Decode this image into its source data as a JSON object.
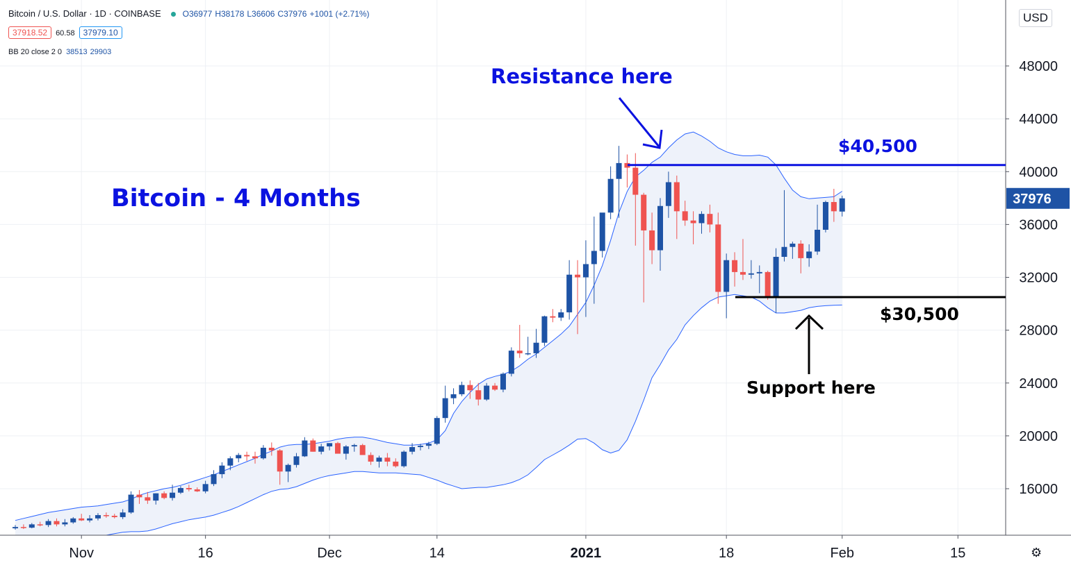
{
  "header": {
    "symbol": "Bitcoin / U.S. Dollar · 1D · COINBASE",
    "ohlc": {
      "o": "O36977",
      "h": "H38178",
      "l": "L36606",
      "c": "C37976",
      "change": "+1001 (+2.71%)"
    },
    "bid": "37918.52",
    "spread": "60.58",
    "ask": "37979.10",
    "indicator_label": "BB 20 close 2 0",
    "indicator_upper": "38513",
    "indicator_lower": "29903"
  },
  "currency_button": "USD",
  "settings_icon": "gear-icon",
  "colors": {
    "up": "#1e53a5",
    "down": "#ef5350",
    "band_fill": "#eef2fa",
    "band_line": "#2962ff",
    "annotation_blue": "#0b12e0",
    "price_tag": "#1e53a5"
  },
  "chart_data": {
    "type": "candlestick",
    "title": "Bitcoin - 4 Months",
    "y_ticks": [
      16000,
      20000,
      24000,
      28000,
      32000,
      36000,
      40000,
      44000,
      48000
    ],
    "y_range": [
      12800,
      51200
    ],
    "x_range": [
      "2020-10-24",
      "2021-02-18"
    ],
    "x_ticks": [
      {
        "label": "Nov",
        "date": "2020-11-01"
      },
      {
        "label": "16",
        "date": "2020-11-16"
      },
      {
        "label": "Dec",
        "date": "2020-12-01"
      },
      {
        "label": "14",
        "date": "2020-12-14"
      },
      {
        "label": "2021",
        "date": "2021-01-01",
        "bold": true
      },
      {
        "label": "18",
        "date": "2021-01-18"
      },
      {
        "label": "Feb",
        "date": "2021-02-01"
      },
      {
        "label": "15",
        "date": "2021-02-15"
      }
    ],
    "last_price": "37976",
    "series": [
      {
        "name": "BTCUSD",
        "start_date": "2020-10-24",
        "candles": [
          [
            13000,
            13250,
            12900,
            13100
          ],
          [
            13100,
            13300,
            12950,
            13050
          ],
          [
            13050,
            13400,
            13000,
            13300
          ],
          [
            13300,
            13500,
            13150,
            13250
          ],
          [
            13250,
            13700,
            13100,
            13550
          ],
          [
            13550,
            13750,
            13150,
            13300
          ],
          [
            13300,
            13700,
            13150,
            13450
          ],
          [
            13450,
            13850,
            13350,
            13750
          ],
          [
            13750,
            14100,
            13550,
            13600
          ],
          [
            13600,
            14000,
            13450,
            13750
          ],
          [
            13750,
            14150,
            13600,
            14000
          ],
          [
            14000,
            14200,
            13800,
            13950
          ],
          [
            13950,
            14100,
            13750,
            13850
          ],
          [
            13850,
            14450,
            13700,
            14200
          ],
          [
            14200,
            15800,
            14100,
            15550
          ],
          [
            15550,
            15900,
            14850,
            15350
          ],
          [
            15350,
            15750,
            14850,
            15100
          ],
          [
            15100,
            15650,
            14800,
            15650
          ],
          [
            15650,
            15800,
            15200,
            15300
          ],
          [
            15300,
            16300,
            15100,
            15700
          ],
          [
            15700,
            16200,
            15600,
            16050
          ],
          [
            16050,
            16300,
            15800,
            15950
          ],
          [
            15950,
            16100,
            15750,
            15800
          ],
          [
            15800,
            16600,
            15650,
            16350
          ],
          [
            16350,
            17400,
            16200,
            17100
          ],
          [
            17100,
            18000,
            16800,
            17750
          ],
          [
            17750,
            18450,
            17400,
            18300
          ],
          [
            18300,
            18700,
            18000,
            18550
          ],
          [
            18550,
            18800,
            18100,
            18450
          ],
          [
            18450,
            18800,
            17900,
            18300
          ],
          [
            18300,
            19300,
            18200,
            19100
          ],
          [
            19100,
            19500,
            18500,
            18900
          ],
          [
            18900,
            19000,
            16300,
            17300
          ],
          [
            17300,
            17900,
            16500,
            17800
          ],
          [
            17800,
            18700,
            17600,
            18450
          ],
          [
            18450,
            19900,
            18400,
            19650
          ],
          [
            19650,
            19800,
            18800,
            18800
          ],
          [
            18800,
            19400,
            18600,
            19200
          ],
          [
            19200,
            19450,
            18900,
            19450
          ],
          [
            19450,
            19550,
            18700,
            18650
          ],
          [
            18650,
            19300,
            18200,
            19200
          ],
          [
            19200,
            19400,
            18800,
            19300
          ],
          [
            19300,
            19400,
            18600,
            18550
          ],
          [
            18550,
            18750,
            17800,
            18050
          ],
          [
            18050,
            18500,
            17600,
            18350
          ],
          [
            18350,
            18700,
            17700,
            18050
          ],
          [
            18050,
            18300,
            17600,
            17700
          ],
          [
            17700,
            18900,
            17600,
            18800
          ],
          [
            18800,
            19450,
            18600,
            19150
          ],
          [
            19150,
            19400,
            18900,
            19250
          ],
          [
            19250,
            19550,
            19000,
            19400
          ],
          [
            19400,
            21500,
            19300,
            21350
          ],
          [
            21350,
            23800,
            21000,
            22850
          ],
          [
            22850,
            23600,
            22400,
            23150
          ],
          [
            23150,
            24100,
            23000,
            23850
          ],
          [
            23850,
            24200,
            22800,
            23450
          ],
          [
            23450,
            24000,
            22300,
            22750
          ],
          [
            22750,
            24000,
            22650,
            23800
          ],
          [
            23800,
            24000,
            23400,
            23500
          ],
          [
            23500,
            24800,
            23300,
            24700
          ],
          [
            24700,
            26700,
            24500,
            26450
          ],
          [
            26450,
            28400,
            25900,
            26250
          ],
          [
            26250,
            27500,
            26100,
            26250
          ],
          [
            26250,
            28100,
            25900,
            27050
          ],
          [
            27050,
            29100,
            26800,
            29050
          ],
          [
            29050,
            29600,
            28600,
            28950
          ],
          [
            28950,
            29600,
            28700,
            29350
          ],
          [
            29350,
            33300,
            28800,
            32200
          ],
          [
            32200,
            33300,
            27700,
            32000
          ],
          [
            32000,
            34800,
            29000,
            33000
          ],
          [
            33000,
            36600,
            30000,
            34000
          ],
          [
            34000,
            36600,
            33500,
            36900
          ],
          [
            36900,
            40400,
            36400,
            39450
          ],
          [
            39450,
            41950,
            36500,
            40650
          ],
          [
            40650,
            41300,
            38800,
            40300
          ],
          [
            40300,
            41400,
            34400,
            38250
          ],
          [
            38250,
            38400,
            30100,
            35550
          ],
          [
            35550,
            36900,
            33000,
            34050
          ],
          [
            34050,
            38000,
            32500,
            37400
          ],
          [
            37400,
            40000,
            36500,
            39200
          ],
          [
            39200,
            39700,
            34900,
            37000
          ],
          [
            37000,
            37800,
            35900,
            36300
          ],
          [
            36300,
            37000,
            34500,
            36100
          ],
          [
            36100,
            37000,
            35300,
            36800
          ],
          [
            36800,
            37500,
            35400,
            36000
          ],
          [
            36000,
            36900,
            30000,
            30900
          ],
          [
            30900,
            33800,
            28900,
            33300
          ],
          [
            33300,
            33900,
            31300,
            32400
          ],
          [
            32400,
            34900,
            31800,
            32200
          ],
          [
            32200,
            33300,
            31900,
            32300
          ],
          [
            32300,
            32900,
            30800,
            32400
          ],
          [
            32400,
            32500,
            30300,
            30550
          ],
          [
            30550,
            34200,
            29300,
            33550
          ],
          [
            33550,
            38600,
            33200,
            34300
          ],
          [
            34300,
            34700,
            33400,
            34550
          ],
          [
            34550,
            34800,
            32300,
            33450
          ],
          [
            33450,
            34500,
            32800,
            33950
          ],
          [
            33950,
            37500,
            33700,
            35600
          ],
          [
            35600,
            37800,
            35400,
            37700
          ],
          [
            37700,
            38700,
            36200,
            37000
          ],
          [
            36977,
            38178,
            36606,
            37976
          ]
        ]
      }
    ],
    "bollinger": {
      "label": "BB 20 close 2 0",
      "upper": [
        13600,
        13750,
        13900,
        14050,
        14200,
        14300,
        14400,
        14500,
        14600,
        14650,
        14700,
        14800,
        14900,
        15000,
        15200,
        15500,
        15700,
        15850,
        16000,
        16100,
        16250,
        16450,
        16650,
        16850,
        17050,
        17300,
        17550,
        17800,
        18050,
        18300,
        18600,
        18850,
        19150,
        19300,
        19350,
        19350,
        19400,
        19500,
        19600,
        19750,
        19850,
        19900,
        19900,
        19800,
        19650,
        19500,
        19400,
        19300,
        19300,
        19350,
        19450,
        19700,
        20400,
        21700,
        22600,
        23300,
        23900,
        24300,
        24500,
        24650,
        24900,
        25300,
        25800,
        26200,
        26700,
        27200,
        27700,
        28300,
        29200,
        30100,
        31400,
        32900,
        34800,
        36900,
        38500,
        39600,
        40100,
        40700,
        41100,
        41800,
        42400,
        42850,
        43000,
        42700,
        42300,
        41800,
        41500,
        41300,
        41200,
        41200,
        41250,
        41100,
        40500,
        39500,
        38600,
        38100,
        37950,
        38000,
        38050,
        38100,
        38513
      ],
      "lower": [
        11000,
        11100,
        11200,
        11350,
        11500,
        11700,
        11850,
        11950,
        12050,
        12150,
        12300,
        12450,
        12600,
        12700,
        12750,
        12750,
        12800,
        12950,
        13150,
        13350,
        13500,
        13650,
        13750,
        13850,
        14000,
        14200,
        14400,
        14650,
        14950,
        15250,
        15550,
        15800,
        15950,
        16000,
        16150,
        16400,
        16650,
        16850,
        17000,
        17100,
        17200,
        17300,
        17300,
        17250,
        17200,
        17200,
        17200,
        17150,
        17100,
        17050,
        16850,
        16650,
        16400,
        16200,
        16000,
        16050,
        16100,
        16100,
        16200,
        16300,
        16450,
        16700,
        17050,
        17600,
        18200,
        18550,
        18900,
        19300,
        19750,
        19800,
        19450,
        18950,
        18700,
        18900,
        19700,
        21100,
        22700,
        24400,
        25400,
        26500,
        27300,
        28400,
        29100,
        29700,
        30200,
        30500,
        30600,
        30700,
        30600,
        30500,
        30200,
        29700,
        29300,
        29300,
        29400,
        29500,
        29700,
        29800,
        29850,
        29880,
        29903
      ]
    },
    "annotations": {
      "resistance_level": 40500,
      "resistance_label": "$40,500",
      "resistance_text": "Resistance here",
      "support_level": 30500,
      "support_label": "$30,500",
      "support_text": "Support here"
    }
  }
}
